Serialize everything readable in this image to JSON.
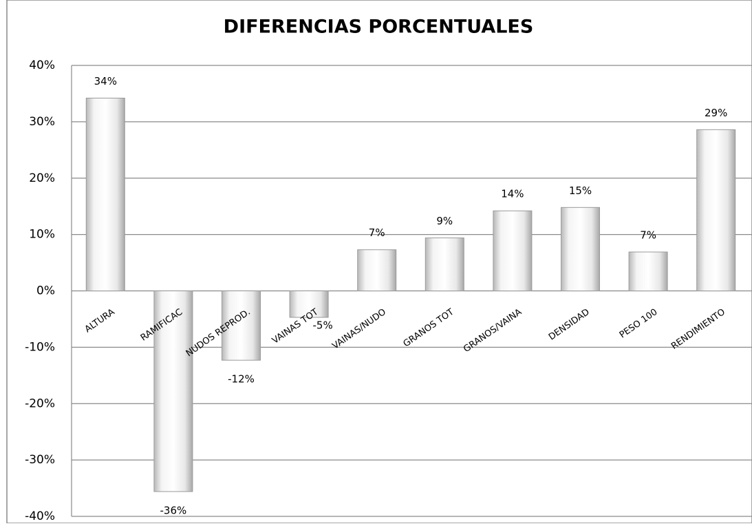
{
  "chart_data": {
    "type": "bar",
    "title": "DIFERENCIAS PORCENTUALES",
    "categories": [
      "ALTURA",
      "RAMIFICAC",
      "NUDOS REPROD.",
      "VAINAS TOT",
      "VAINAS/NUDO",
      "GRANOS TOT",
      "GRANOS/VAINA",
      "DENSIDAD",
      "PESO 100",
      "RENDIMIENTO"
    ],
    "values": [
      34.2,
      -35.6,
      -12.3,
      -4.7,
      7.3,
      9.4,
      14.2,
      14.8,
      6.9,
      28.6
    ],
    "value_labels": [
      "34%",
      "-36%",
      "-12%",
      "-5%",
      "7%",
      "9%",
      "14%",
      "15%",
      "7%",
      "29%"
    ],
    "color": "#e6e6e6",
    "ylim": [
      -40,
      40
    ],
    "yticks": [
      {
        "value": -40,
        "label": "-40%"
      },
      {
        "value": -30,
        "label": "-30%"
      },
      {
        "value": -20,
        "label": "-20%"
      },
      {
        "value": -10,
        "label": "-10%"
      },
      {
        "value": 0,
        "label": "0%"
      },
      {
        "value": 10,
        "label": "10%"
      },
      {
        "value": 20,
        "label": "20%"
      },
      {
        "value": 30,
        "label": "30%"
      },
      {
        "value": 40,
        "label": "40%"
      }
    ],
    "grid": true
  }
}
